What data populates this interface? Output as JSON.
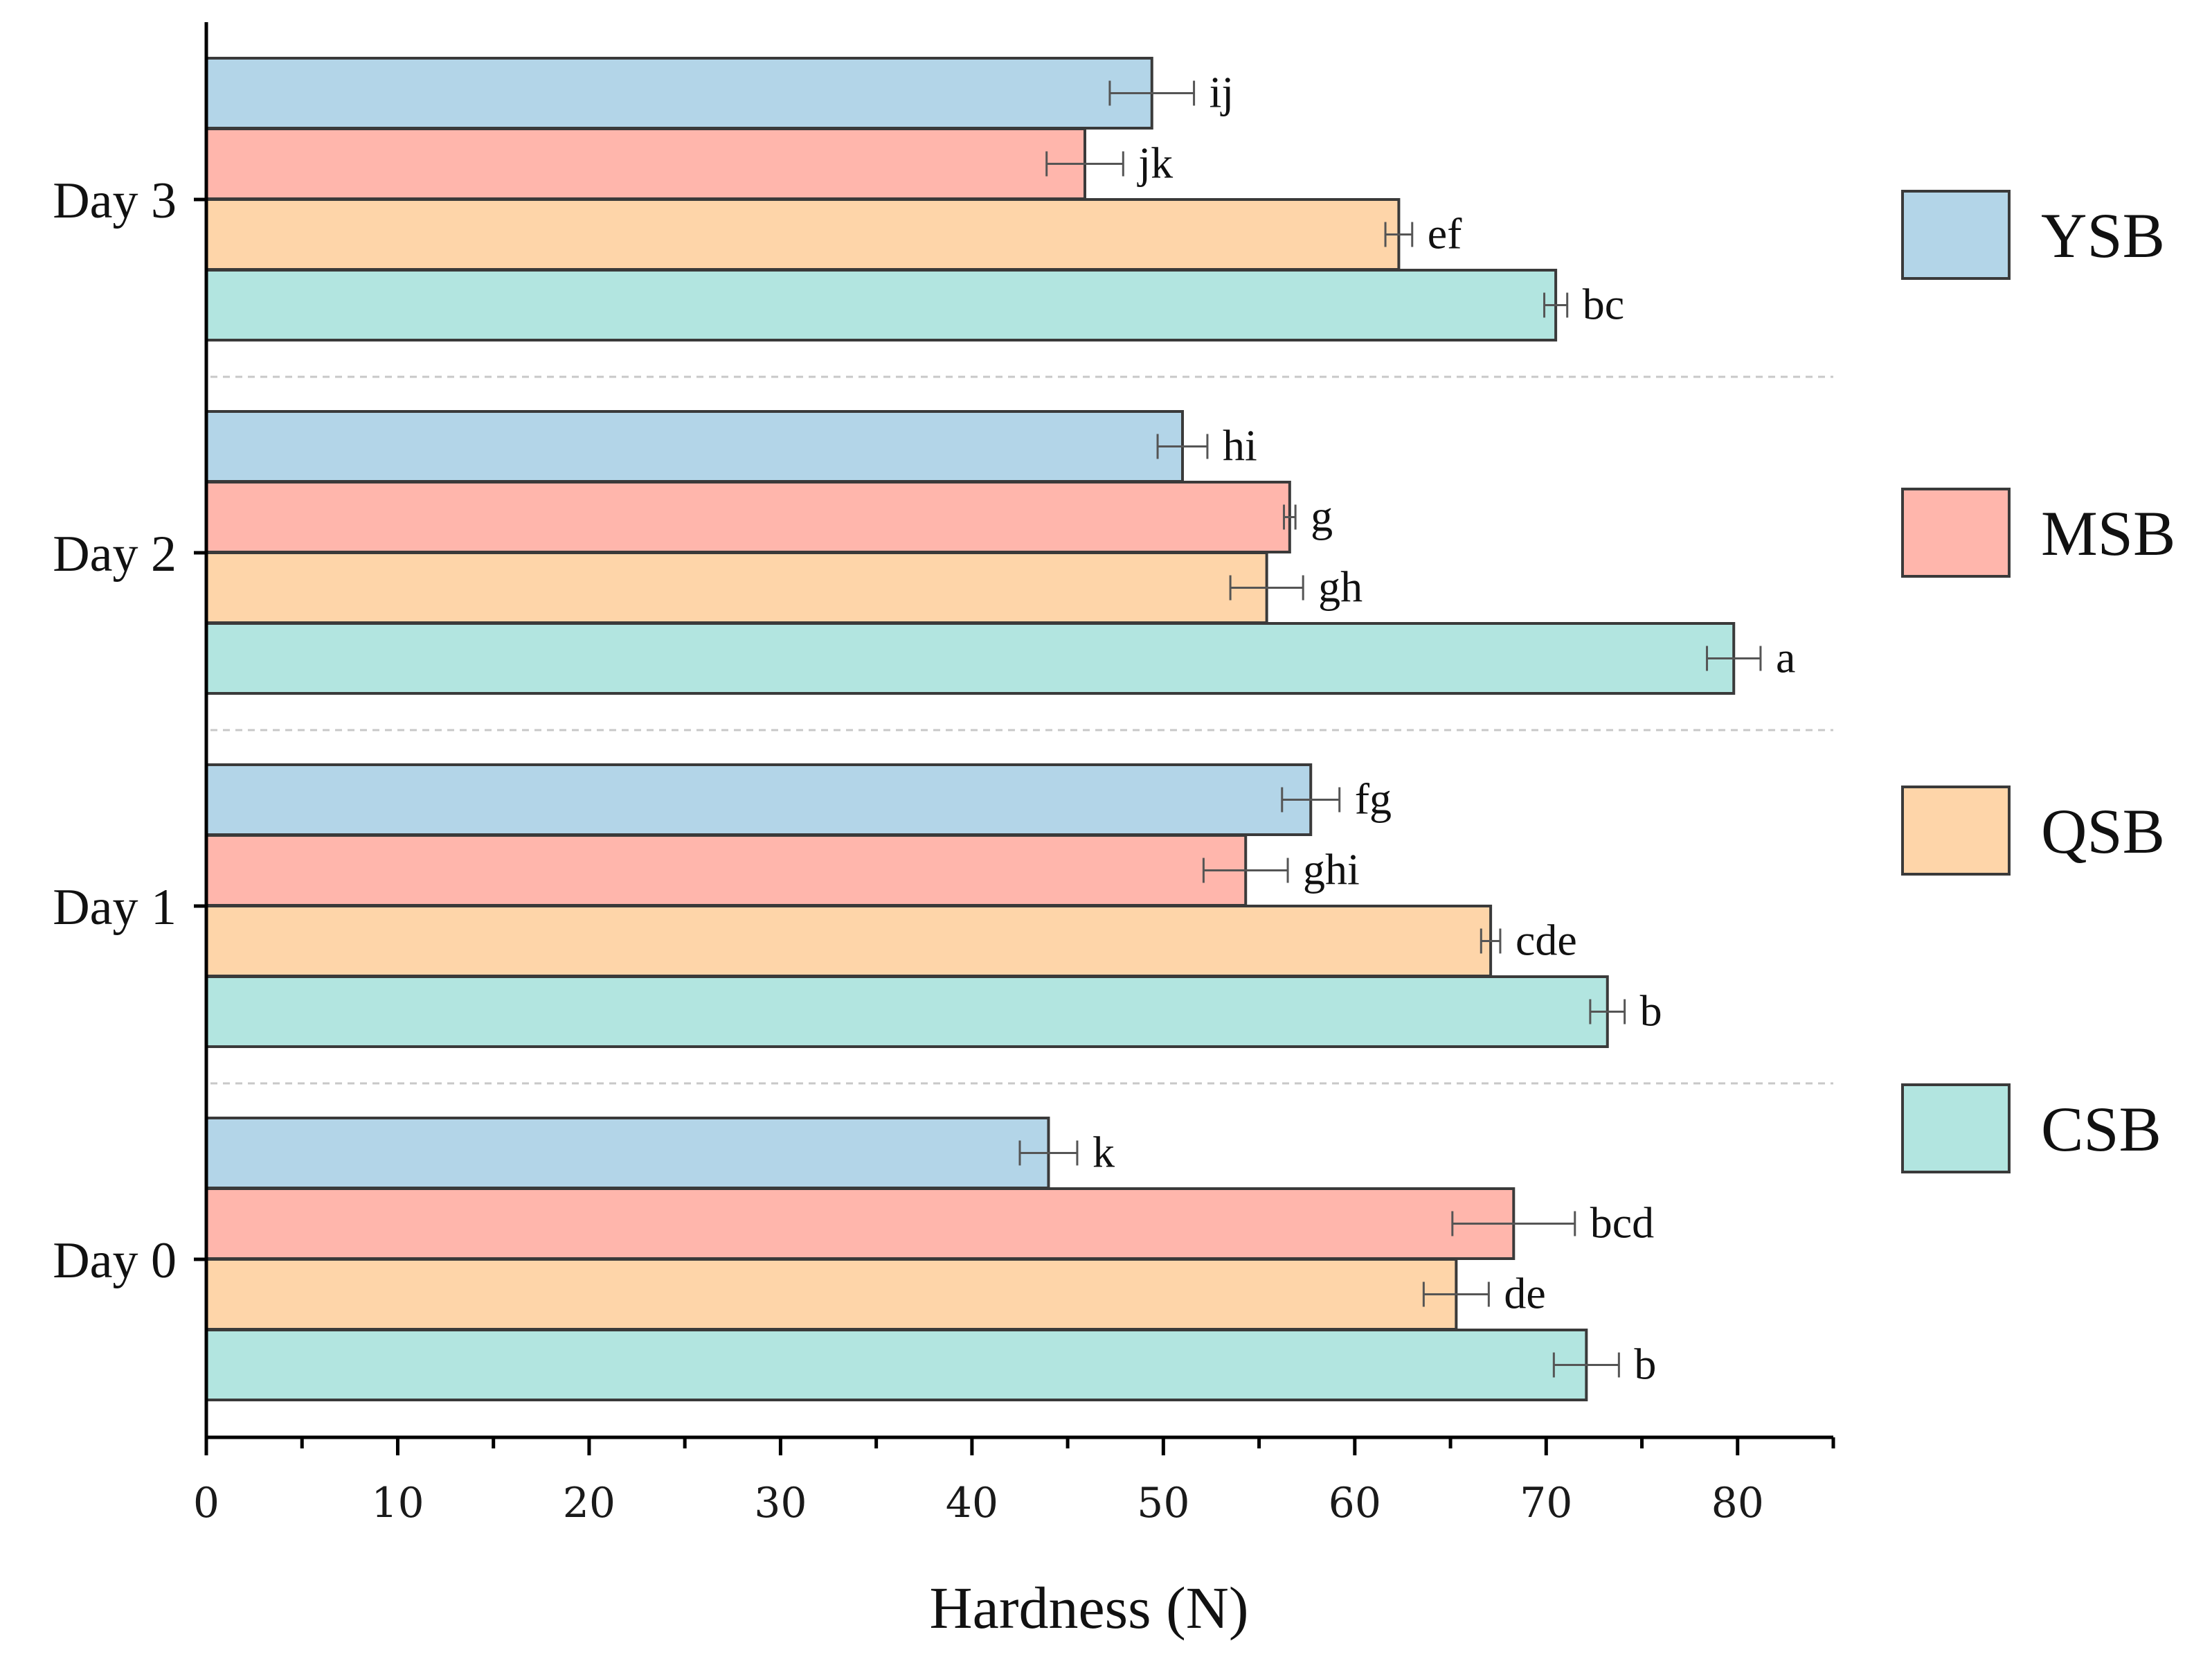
{
  "chart_data": {
    "type": "bar",
    "orientation": "horizontal",
    "xlabel": "Hardness (N)",
    "ylabel": "",
    "xlim": [
      0,
      85
    ],
    "x_ticks": [
      0,
      10,
      20,
      30,
      40,
      50,
      60,
      70,
      80
    ],
    "categories": [
      "Day 3",
      "Day 2",
      "Day 1",
      "Day 0"
    ],
    "series": [
      {
        "name": "YSB",
        "color": "#b3d5e8",
        "values": [
          49.4,
          51.0,
          57.7,
          44.0
        ],
        "errors": [
          2.2,
          1.3,
          1.5,
          1.5
        ],
        "letters": [
          "ij",
          "hi",
          "fg",
          "k"
        ]
      },
      {
        "name": "MSB",
        "color": "#ffb6ac",
        "values": [
          45.9,
          56.6,
          54.3,
          68.3
        ],
        "errors": [
          2.0,
          0.3,
          2.2,
          3.2
        ],
        "letters": [
          "jk",
          "g",
          "ghi",
          "bcd"
        ]
      },
      {
        "name": "QSB",
        "color": "#fed5a9",
        "values": [
          62.3,
          55.4,
          67.1,
          65.3
        ],
        "errors": [
          0.7,
          1.9,
          0.5,
          1.7
        ],
        "letters": [
          "ef",
          "gh",
          "cde",
          "de"
        ]
      },
      {
        "name": "CSB",
        "color": "#b2e5e0",
        "values": [
          70.5,
          79.8,
          73.2,
          72.1
        ],
        "errors": [
          0.6,
          1.4,
          0.9,
          1.7
        ],
        "letters": [
          "bc",
          "a",
          "b",
          "b"
        ]
      }
    ],
    "legend": [
      "YSB",
      "MSB",
      "QSB",
      "CSB"
    ],
    "legend_position": "right",
    "grid": false
  }
}
